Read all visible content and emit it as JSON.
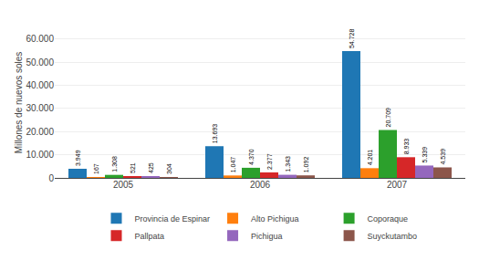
{
  "chart_data": {
    "type": "bar",
    "categories": [
      "2005",
      "2006",
      "2007"
    ],
    "series": [
      {
        "name": "Provincia de Espinar",
        "values": [
          3949,
          13693,
          54728
        ],
        "value_labels": [
          "3.949",
          "13.693",
          "54.728"
        ]
      },
      {
        "name": "Alto Pichigua",
        "values": [
          167,
          1047,
          4201
        ],
        "value_labels": [
          "167",
          "1.047",
          "4.201"
        ]
      },
      {
        "name": "Coporaque",
        "values": [
          1308,
          4370,
          20709
        ],
        "value_labels": [
          "1.308",
          "4.370",
          "20.709"
        ]
      },
      {
        "name": "Pallpata",
        "values": [
          521,
          2377,
          8933
        ],
        "value_labels": [
          "521",
          "2.377",
          "8.933"
        ]
      },
      {
        "name": "Pichigua",
        "values": [
          425,
          1343,
          5339
        ],
        "value_labels": [
          "425",
          "1.343",
          "5.339"
        ]
      },
      {
        "name": "Suyckutambo",
        "values": [
          304,
          1092,
          4539
        ],
        "value_labels": [
          "304",
          "1.092",
          "4.539"
        ]
      }
    ],
    "ylabel": "Millones de nuevos soles",
    "ylim": [
      0,
      65000
    ],
    "yticks": [
      0,
      {
        "value": 10000,
        "label": "10.000"
      },
      {
        "value": 20000,
        "label": "20.000"
      },
      {
        "value": 30000,
        "label": "30.000"
      },
      {
        "value": 40000,
        "label": "40.000"
      },
      {
        "value": 50000,
        "label": "50.000"
      },
      {
        "value": 60000,
        "label": "60.000"
      }
    ],
    "grid": true,
    "legend": "bottom",
    "data_labels": true
  }
}
